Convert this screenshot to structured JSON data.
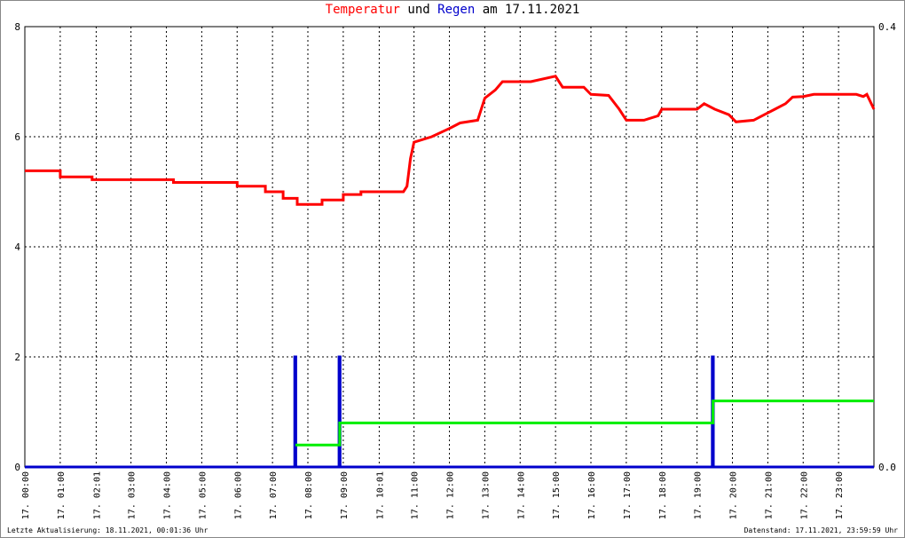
{
  "chart_data": {
    "type": "line",
    "title_parts": [
      {
        "text": "Temperatur",
        "color": "#ff0000"
      },
      {
        "text": "und",
        "color": "#000000"
      },
      {
        "text": "Regen",
        "color": "#0000cc"
      },
      {
        "text": "am 17.11.2021",
        "color": "#000000"
      }
    ],
    "footer_left": "Letzte Aktualisierung: 18.11.2021, 00:01:36 Uhr",
    "footer_right": "Datenstand: 17.11.2021, 23:59:59 Uhr",
    "xlim": [
      0,
      24
    ],
    "xticks": [
      {
        "value": 0,
        "label": "17. 00:00"
      },
      {
        "value": 1,
        "label": "17. 01:00"
      },
      {
        "value": 2.0167,
        "label": "17. 02:01"
      },
      {
        "value": 3,
        "label": "17. 03:00"
      },
      {
        "value": 4,
        "label": "17. 04:00"
      },
      {
        "value": 5,
        "label": "17. 05:00"
      },
      {
        "value": 6,
        "label": "17. 06:00"
      },
      {
        "value": 7,
        "label": "17. 07:00"
      },
      {
        "value": 8,
        "label": "17. 08:00"
      },
      {
        "value": 9,
        "label": "17. 09:00"
      },
      {
        "value": 10.0167,
        "label": "17. 10:01"
      },
      {
        "value": 11,
        "label": "17. 11:00"
      },
      {
        "value": 12,
        "label": "17. 12:00"
      },
      {
        "value": 13,
        "label": "17. 13:00"
      },
      {
        "value": 14,
        "label": "17. 14:00"
      },
      {
        "value": 15,
        "label": "17. 15:00"
      },
      {
        "value": 16,
        "label": "17. 16:00"
      },
      {
        "value": 17,
        "label": "17. 17:00"
      },
      {
        "value": 18,
        "label": "17. 18:00"
      },
      {
        "value": 19,
        "label": "17. 19:00"
      },
      {
        "value": 20,
        "label": "17. 20:00"
      },
      {
        "value": 21,
        "label": "17. 21:00"
      },
      {
        "value": 22,
        "label": "17. 22:00"
      },
      {
        "value": 23,
        "label": "17. 23:00"
      }
    ],
    "ylim": [
      0,
      8
    ],
    "yticks": [
      0,
      2,
      4,
      6,
      8
    ],
    "y2lim": [
      0,
      0.4
    ],
    "y2ticks": [
      {
        "value": 0,
        "label": "0.0"
      },
      0.4
    ],
    "grid": true,
    "series": [
      {
        "color": "#ff0000",
        "x": [
          0,
          1,
          1,
          1.9,
          1.9,
          4.2,
          4.2,
          6.0,
          6.0,
          6.8,
          6.8,
          7.3,
          7.3,
          7.7,
          7.7,
          8.4,
          8.4,
          9.0,
          9.0,
          9.5,
          9.5,
          10.7,
          10.8,
          10.9,
          11.0,
          11.5,
          12.0,
          12.3,
          12.8,
          13.0,
          13.3,
          13.5,
          14.3,
          15.0,
          15.2,
          15.8,
          16.0,
          16.5,
          16.8,
          17.0,
          17.5,
          17.9,
          18.0,
          19.0,
          19.2,
          19.5,
          19.9,
          20.1,
          20.6,
          20.9,
          21.2,
          21.5,
          21.7,
          22.0,
          22.3,
          23.5,
          23.7,
          23.8,
          24
        ],
        "values": [
          5.38,
          5.38,
          5.27,
          5.27,
          5.22,
          5.22,
          5.17,
          5.17,
          5.1,
          5.1,
          5.0,
          5.0,
          4.88,
          4.88,
          4.77,
          4.77,
          4.85,
          4.85,
          4.95,
          4.95,
          5.0,
          5.0,
          5.1,
          5.6,
          5.9,
          6.0,
          6.15,
          6.25,
          6.3,
          6.7,
          6.85,
          7.0,
          7.0,
          7.1,
          6.9,
          6.9,
          6.77,
          6.75,
          6.5,
          6.3,
          6.3,
          6.38,
          6.5,
          6.5,
          6.6,
          6.5,
          6.4,
          6.27,
          6.3,
          6.4,
          6.5,
          6.6,
          6.72,
          6.73,
          6.77,
          6.77,
          6.73,
          6.77,
          6.5
        ]
      },
      {
        "color": "#0000cc",
        "axis": "y2",
        "x": [
          0,
          7.63,
          7.63,
          7.66,
          7.66,
          8.88,
          8.88,
          8.91,
          8.91,
          19.43,
          19.43,
          19.46,
          19.46,
          24
        ],
        "values": [
          0,
          0,
          0.1,
          0.1,
          0,
          0,
          0.1,
          0.1,
          0,
          0,
          0.1,
          0.1,
          0,
          0
        ]
      },
      {
        "color": "#00ee00",
        "axis": "y2",
        "x": [
          7.65,
          8.9,
          8.9,
          19.45,
          19.45,
          24
        ],
        "values": [
          0.02,
          0.02,
          0.04,
          0.04,
          0.06,
          0.06
        ]
      }
    ]
  }
}
